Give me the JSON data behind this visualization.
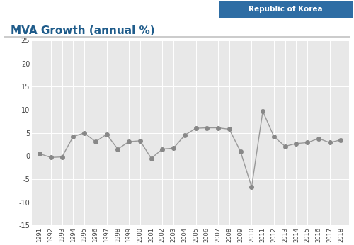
{
  "title": "MVA Growth (annual %)",
  "title_color": "#1f5c8b",
  "title_fontsize": 11,
  "header_label": "Republic of Korea",
  "header_bg": "#2e6da4",
  "header_text_color": "#ffffff",
  "years": [
    1991,
    1992,
    1993,
    1994,
    1995,
    1996,
    1997,
    1998,
    1999,
    2000,
    2001,
    2002,
    2003,
    2004,
    2005,
    2006,
    2007,
    2008,
    2009,
    2010,
    2011,
    2012,
    2013,
    2014,
    2015,
    2016,
    2017,
    2018
  ],
  "values": [
    0.5,
    -0.3,
    -0.2,
    4.2,
    5.0,
    3.1,
    4.7,
    1.5,
    3.1,
    3.3,
    -0.5,
    1.5,
    1.7,
    4.5,
    6.0,
    6.1,
    6.1,
    5.8,
    1.0,
    -6.7,
    9.7,
    4.2,
    2.1,
    2.7,
    2.9,
    3.8,
    2.9,
    3.5
  ],
  "line_color": "#999999",
  "marker_color": "#888888",
  "marker_size": 4,
  "ylim": [
    -15,
    25
  ],
  "yticks": [
    -15,
    -10,
    -5,
    0,
    5,
    10,
    15,
    20,
    25
  ],
  "fig_bg": "#ffffff",
  "plot_bg_color": "#e8e8e8",
  "grid_color": "#ffffff",
  "separator_color": "#cccccc"
}
